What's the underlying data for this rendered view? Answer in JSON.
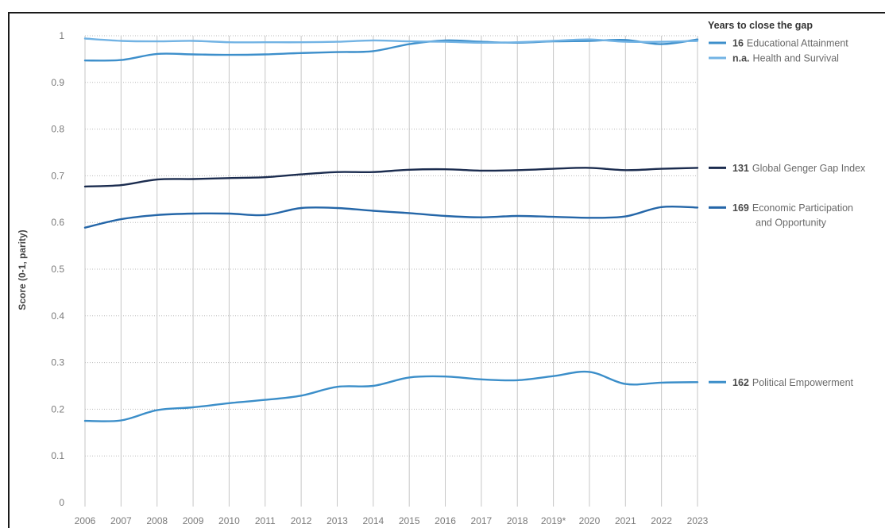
{
  "chart_data": {
    "type": "line",
    "title": "",
    "xlabel": "",
    "ylabel": "Score (0-1, parity)",
    "x": [
      "2006",
      "2007",
      "2008",
      "2009",
      "2010",
      "2011",
      "2012",
      "2013",
      "2014",
      "2015",
      "2016",
      "2017",
      "2018",
      "2019*",
      "2020",
      "2021",
      "2022",
      "2023"
    ],
    "yticks": [
      "0",
      "0.1",
      "0.2",
      "0.3",
      "0.4",
      "0.5",
      "0.6",
      "0.7",
      "0.8",
      "0.9",
      "1"
    ],
    "ylim": [
      0,
      1
    ],
    "grid": "dotted horizontal, solid vertical",
    "legend_title": "Years to close the gap",
    "legend_placement": "right",
    "series": [
      {
        "key": "educational",
        "years": "16",
        "name": "Educational Attainment",
        "color": "#3d8fcb",
        "legend_group": "top",
        "values": [
          0.947,
          0.948,
          0.961,
          0.96,
          0.959,
          0.96,
          0.963,
          0.965,
          0.967,
          0.982,
          0.99,
          0.987,
          0.985,
          0.988,
          0.989,
          0.991,
          0.982,
          0.992
        ]
      },
      {
        "key": "health",
        "years": "n.a.",
        "name": "Health and Survival",
        "color": "#72b3e4",
        "legend_group": "top",
        "values": [
          0.994,
          0.989,
          0.988,
          0.989,
          0.986,
          0.986,
          0.986,
          0.987,
          0.99,
          0.988,
          0.987,
          0.985,
          0.986,
          0.989,
          0.992,
          0.987,
          0.987,
          0.989
        ]
      },
      {
        "key": "global",
        "years": "131",
        "name": "Global Genger Gap Index",
        "color": "#1b2c4f",
        "legend_group": "line",
        "values": [
          0.677,
          0.68,
          0.692,
          0.693,
          0.695,
          0.697,
          0.703,
          0.708,
          0.708,
          0.713,
          0.714,
          0.711,
          0.712,
          0.715,
          0.717,
          0.712,
          0.715,
          0.717
        ]
      },
      {
        "key": "economic",
        "years": "169",
        "name": "Economic Participation",
        "name_line2": "and Opportunity",
        "color": "#2466a8",
        "legend_group": "line",
        "values": [
          0.589,
          0.607,
          0.616,
          0.619,
          0.619,
          0.616,
          0.631,
          0.631,
          0.625,
          0.62,
          0.614,
          0.611,
          0.614,
          0.612,
          0.61,
          0.613,
          0.633,
          0.632
        ]
      },
      {
        "key": "political",
        "years": "162",
        "name": "Political Empowerment",
        "color": "#3b8ec9",
        "legend_group": "line",
        "values": [
          0.175,
          0.176,
          0.198,
          0.204,
          0.213,
          0.22,
          0.229,
          0.248,
          0.25,
          0.268,
          0.27,
          0.264,
          0.262,
          0.271,
          0.28,
          0.254,
          0.257,
          0.258
        ]
      }
    ]
  }
}
